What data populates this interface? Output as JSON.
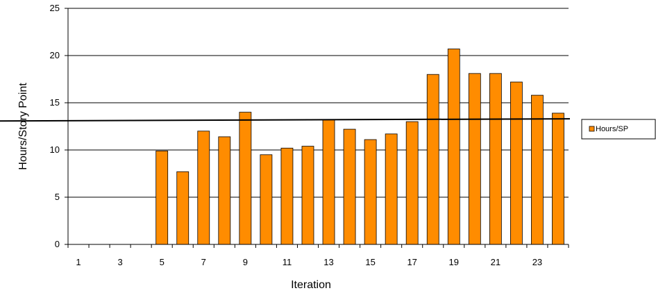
{
  "chart_data": {
    "type": "bar",
    "categories": [
      "1",
      "2",
      "3",
      "4",
      "5",
      "6",
      "7",
      "8",
      "9",
      "10",
      "11",
      "12",
      "13",
      "14",
      "15",
      "16",
      "17",
      "18",
      "19",
      "20",
      "21",
      "22",
      "23",
      "24"
    ],
    "tick_labels": [
      "1",
      "3",
      "5",
      "7",
      "9",
      "11",
      "13",
      "15",
      "17",
      "19",
      "21",
      "23"
    ],
    "series": [
      {
        "name": "Hours/SP",
        "color": "#ff8c00",
        "values": [
          0,
          0,
          0,
          0,
          9.9,
          7.7,
          12.0,
          11.4,
          14.0,
          9.5,
          10.2,
          10.4,
          13.2,
          12.2,
          11.1,
          11.7,
          13.0,
          18.0,
          20.7,
          18.1,
          18.1,
          17.2,
          15.8,
          13.9
        ]
      }
    ],
    "reference_line": {
      "start": 13.1,
      "end": 13.3,
      "color": "#000000"
    },
    "xlabel": "Iteration",
    "ylabel": "Hours/Story Point",
    "ylim": [
      0,
      25
    ],
    "yticks": [
      0,
      5,
      10,
      15,
      20,
      25
    ],
    "grid": true,
    "legend_position": "right",
    "legend_label": "Hours/SP"
  }
}
